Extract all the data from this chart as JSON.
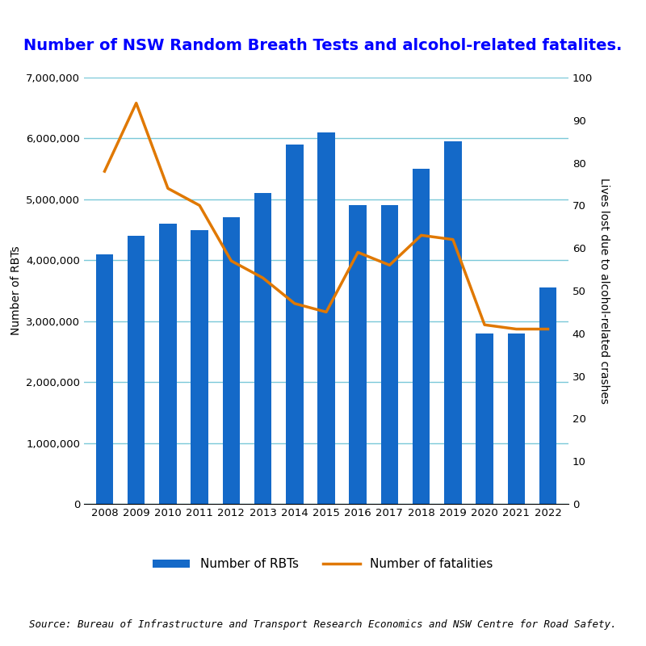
{
  "title": "Number of NSW Random Breath Tests and alcohol-related fatalites.",
  "years": [
    2008,
    2009,
    2010,
    2011,
    2012,
    2013,
    2014,
    2015,
    2016,
    2017,
    2018,
    2019,
    2020,
    2021,
    2022
  ],
  "rbt_values": [
    4100000,
    4400000,
    4600000,
    4500000,
    4700000,
    5100000,
    5900000,
    6100000,
    4900000,
    4900000,
    5500000,
    5950000,
    2800000,
    2800000,
    3550000
  ],
  "fatalities": [
    78,
    94,
    74,
    70,
    57,
    53,
    47,
    45,
    59,
    56,
    63,
    62,
    42,
    41,
    41
  ],
  "bar_color": "#1469c8",
  "line_color": "#e07800",
  "ylabel_left": "Number of RBTs",
  "ylabel_right": "Lives lost due to alcohol-related crashes",
  "ylim_left": [
    0,
    7000000
  ],
  "ylim_right": [
    0,
    100
  ],
  "yticks_left": [
    0,
    1000000,
    2000000,
    3000000,
    4000000,
    5000000,
    6000000,
    7000000
  ],
  "yticks_right": [
    0,
    10,
    20,
    30,
    40,
    50,
    60,
    70,
    80,
    90,
    100
  ],
  "legend_rbt": "Number of RBTs",
  "legend_fatalities": "Number of fatalities",
  "source_text": "Source: Bureau of Infrastructure and Transport Research Economics and NSW Centre for Road Safety.",
  "background_color": "#ffffff",
  "grid_color": "#7ac8d8",
  "title_color": "#0000ff",
  "title_fontsize": 14,
  "axis_label_fontsize": 10,
  "tick_fontsize": 9.5,
  "legend_fontsize": 11,
  "source_fontsize": 9,
  "line_width": 2.5,
  "bar_width": 0.55
}
